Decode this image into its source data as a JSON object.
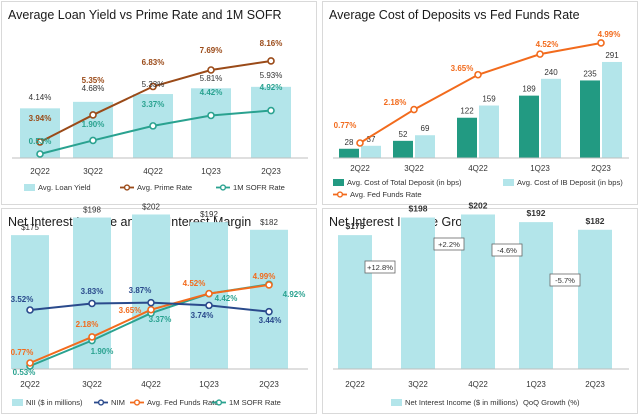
{
  "colors": {
    "bar": "#b3e5ea",
    "bar_dark": "#229a82",
    "brown": "#9a4a18",
    "teal": "#2aa290",
    "orange": "#f26b1d",
    "navy": "#2a4a8c",
    "text": "#333333",
    "gray": "#888888"
  },
  "chart_data": [
    {
      "type": "bar+line",
      "title": "Average Loan Yield vs Prime Rate and 1M SOFR",
      "categories": [
        "2Q22",
        "3Q22",
        "4Q22",
        "1Q23",
        "2Q23"
      ],
      "ylim": [
        0,
        9
      ],
      "series": [
        {
          "name": "Avg. Loan Yield",
          "kind": "bar",
          "values": [
            4.14,
            4.68,
            5.33,
            5.81,
            5.93
          ],
          "labels": [
            "4.14%",
            "4.68%",
            "5.33%",
            "5.81%",
            "5.93%"
          ]
        },
        {
          "name": "Avg. Prime Rate",
          "kind": "line",
          "values": [
            3.94,
            5.35,
            6.83,
            7.69,
            8.16
          ],
          "labels": [
            "3.94%",
            "5.35%",
            "6.83%",
            "7.69%",
            "8.16%"
          ]
        },
        {
          "name": "1M SOFR Rate",
          "kind": "line",
          "values": [
            0.53,
            1.9,
            3.37,
            4.42,
            4.92
          ],
          "labels": [
            "0.53%",
            "1.90%",
            "3.37%",
            "4.42%",
            "4.92%"
          ]
        }
      ]
    },
    {
      "type": "bar+line",
      "title": "Average Cost of Deposits vs Fed Funds Rate",
      "categories": [
        "2Q22",
        "3Q22",
        "4Q22",
        "1Q23",
        "2Q23"
      ],
      "ylim": [
        0,
        300
      ],
      "series": [
        {
          "name": "Avg. Cost of Total Deposit (in bps)",
          "kind": "bar",
          "values": [
            28,
            52,
            122,
            189,
            235
          ],
          "labels": [
            "28",
            "52",
            "122",
            "189",
            "235"
          ]
        },
        {
          "name": "Avg. Cost of IB Deposit (in bps)",
          "kind": "bar",
          "values": [
            37,
            69,
            159,
            240,
            291
          ],
          "labels": [
            "37",
            "69",
            "159",
            "240",
            "291"
          ]
        },
        {
          "name": "Avg. Fed Funds Rate",
          "kind": "line",
          "values": [
            0.77,
            2.18,
            3.65,
            4.52,
            4.99
          ],
          "labels": [
            "0.77%",
            "2.18%",
            "3.65%",
            "4.52%",
            "4.99%"
          ]
        }
      ]
    },
    {
      "type": "bar+line",
      "title": "Net Interest Income and Net Interest Margin",
      "categories": [
        "2Q22",
        "3Q22",
        "4Q22",
        "1Q23",
        "2Q23"
      ],
      "ylim": [
        0,
        210
      ],
      "series": [
        {
          "name": "NII ($ in millions)",
          "kind": "bar",
          "values": [
            175,
            198,
            202,
            192,
            182
          ],
          "labels": [
            "$175",
            "$198",
            "$202",
            "$192",
            "$182"
          ]
        },
        {
          "name": "NIM",
          "kind": "line",
          "values": [
            3.52,
            3.83,
            3.87,
            3.74,
            3.44
          ],
          "labels": [
            "3.52%",
            "3.83%",
            "3.87%",
            "3.74%",
            "3.44%"
          ]
        },
        {
          "name": "Avg. Fed Funds Rate",
          "kind": "line",
          "values": [
            0.77,
            2.18,
            3.65,
            4.52,
            4.99
          ],
          "labels": [
            "0.77%",
            "2.18%",
            "3.65%",
            "4.52%",
            "4.99%"
          ]
        },
        {
          "name": "1M SOFR Rate",
          "kind": "line",
          "values": [
            0.53,
            1.9,
            3.37,
            4.42,
            4.92
          ],
          "labels": [
            "0.53%",
            "1.90%",
            "3.37%",
            "4.42%",
            "4.92%"
          ]
        }
      ]
    },
    {
      "type": "bar",
      "title": "Net Interest Income Growth",
      "categories": [
        "2Q22",
        "3Q22",
        "4Q22",
        "1Q23",
        "2Q23"
      ],
      "ylim": [
        0,
        210
      ],
      "series": [
        {
          "name": "Net Interest Income ($ in millions)",
          "kind": "bar",
          "values": [
            175,
            198,
            202,
            192,
            182
          ],
          "labels": [
            "$175",
            "$198",
            "$202",
            "$192",
            "$182"
          ]
        }
      ],
      "growth": {
        "name": "QoQ Growth (%)",
        "values": [
          12.8,
          2.2,
          -4.6,
          -5.7
        ],
        "labels": [
          "+12.8%",
          "+2.2%",
          "-4.6%",
          "-5.7%"
        ]
      }
    }
  ]
}
